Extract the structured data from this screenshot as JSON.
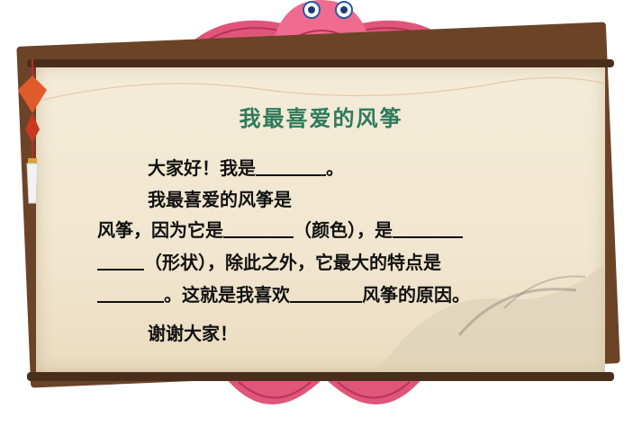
{
  "title": "我最喜爱的风筝",
  "line1": {
    "before": "大家好！我是",
    "after": "。"
  },
  "line2": {
    "text": "我最喜爱的风筝是"
  },
  "line3": {
    "part1": "风筝，因为它是",
    "part2": "（颜色），是"
  },
  "line4": {
    "text": "（形状），除此之外，它最大的特点是"
  },
  "line5": {
    "part1": "。这就是我喜欢",
    "part2": "风筝的原因。"
  },
  "line6": {
    "text": "谢谢大家！"
  },
  "colors": {
    "title": "#2f7a5c",
    "fish": "#e0557a",
    "fish_dark": "#b8325a",
    "wood": "#4a2e1c",
    "paper": "#f1e6cf"
  }
}
